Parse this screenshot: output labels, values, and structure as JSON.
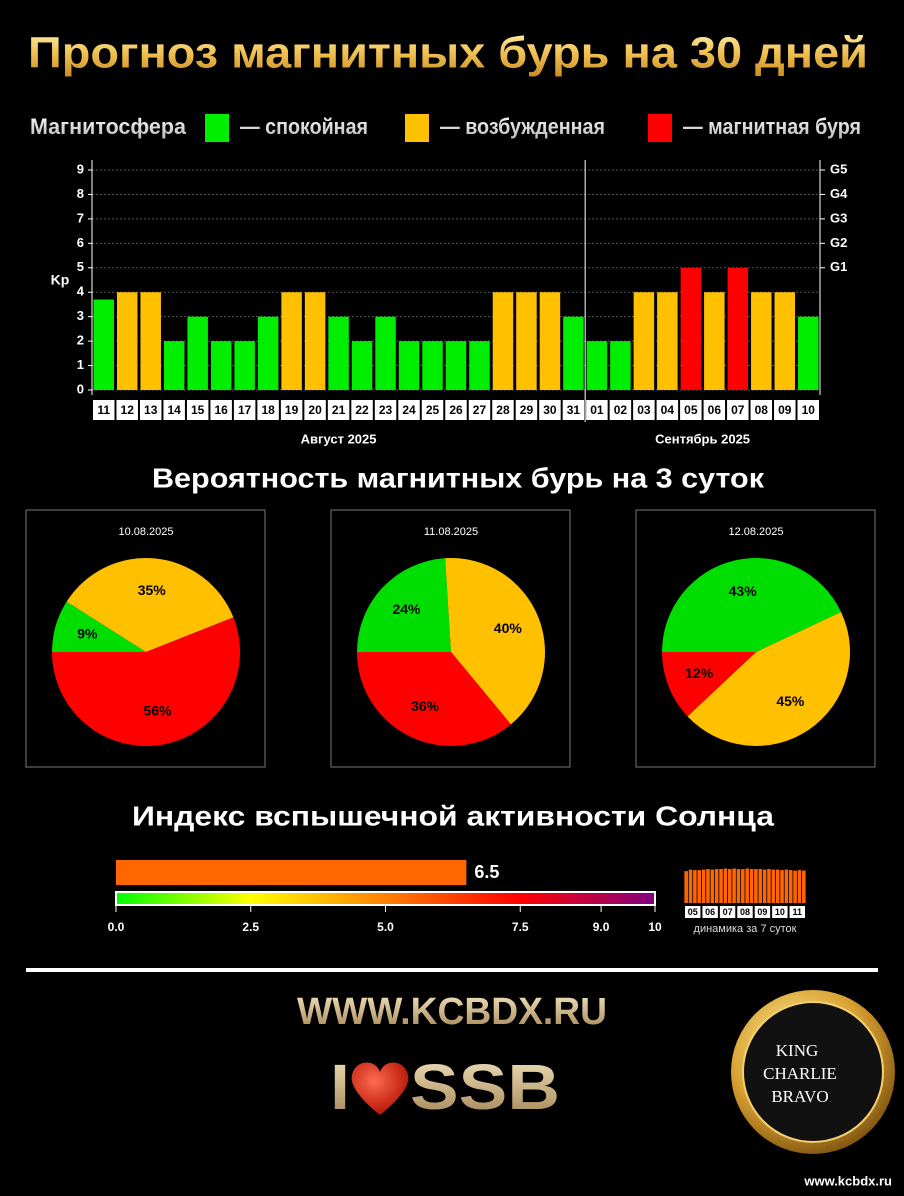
{
  "header": {
    "title": "Прогноз магнитных бурь на 30 дней"
  },
  "legend": {
    "title": "Магнитосфера",
    "items": [
      {
        "label": "— спокойная",
        "color": "#00ee00"
      },
      {
        "label": "— возбужденная",
        "color": "#ffc000"
      },
      {
        "label": "— магнитная буря",
        "color": "#ff0000"
      }
    ]
  },
  "sections": {
    "pies": "Вероятность магнитных бурь на 3 суток",
    "flare": "Индекс вспышечной активности Солнца"
  },
  "chart_data": [
    {
      "type": "bar",
      "y_label": "Kp",
      "ylim": [
        0,
        9
      ],
      "yticks": [
        0,
        1,
        2,
        3,
        4,
        5,
        6,
        7,
        8,
        9
      ],
      "grid": true,
      "y2lim": [
        0,
        9
      ],
      "y2ticks": [
        {
          "value": 5,
          "label": "G1"
        },
        {
          "value": 6,
          "label": "G2"
        },
        {
          "value": 7,
          "label": "G3"
        },
        {
          "value": 8,
          "label": "G4"
        },
        {
          "value": 9,
          "label": "G5"
        }
      ],
      "groups": [
        {
          "label": "Август 2025",
          "categories": [
            "11",
            "12",
            "13",
            "14",
            "15",
            "16",
            "17",
            "18",
            "19",
            "20",
            "21",
            "22",
            "23",
            "24",
            "25",
            "26",
            "27",
            "28",
            "29",
            "30",
            "31"
          ],
          "values": [
            3.7,
            4,
            4,
            2,
            3,
            2,
            2,
            3,
            4,
            4,
            3,
            2,
            3,
            2,
            2,
            2,
            2,
            4,
            4,
            4,
            3
          ],
          "colors": [
            "#00ee00",
            "#ffc000",
            "#ffc000",
            "#00ee00",
            "#00ee00",
            "#00ee00",
            "#00ee00",
            "#00ee00",
            "#ffc000",
            "#ffc000",
            "#00ee00",
            "#00ee00",
            "#00ee00",
            "#00ee00",
            "#00ee00",
            "#00ee00",
            "#00ee00",
            "#ffc000",
            "#ffc000",
            "#ffc000",
            "#00ee00"
          ]
        },
        {
          "label": "Сентябрь 2025",
          "categories": [
            "01",
            "02",
            "03",
            "04",
            "05",
            "06",
            "07",
            "08",
            "09",
            "10"
          ],
          "values": [
            2,
            2,
            4,
            4,
            5,
            4,
            5,
            4,
            4,
            3
          ],
          "colors": [
            "#00ee00",
            "#00ee00",
            "#ffc000",
            "#ffc000",
            "#ff0000",
            "#ffc000",
            "#ff0000",
            "#ffc000",
            "#ffc000",
            "#00ee00"
          ]
        }
      ]
    },
    {
      "type": "pie",
      "title": "10.08.2025",
      "values": [
        9,
        35,
        56
      ],
      "value_labels": [
        "9%",
        "35%",
        "56%"
      ],
      "colors": [
        "#00dd00",
        "#ffc000",
        "#ff0000"
      ]
    },
    {
      "type": "pie",
      "title": "11.08.2025",
      "values": [
        24,
        40,
        36
      ],
      "value_labels": [
        "24%",
        "40%",
        "36%"
      ],
      "colors": [
        "#00dd00",
        "#ffc000",
        "#ff0000"
      ]
    },
    {
      "type": "pie",
      "title": "12.08.2025",
      "values": [
        43,
        45,
        12
      ],
      "value_labels": [
        "43%",
        "45%",
        "12%"
      ],
      "colors": [
        "#00dd00",
        "#ffc000",
        "#ff0000"
      ]
    },
    {
      "type": "hbar",
      "values": [
        6.5
      ],
      "color": "#ff6600",
      "xlim": [
        0,
        10
      ],
      "xticks": [
        {
          "value": 0,
          "label": "0.0"
        },
        2.5,
        {
          "value": 5,
          "label": "5.0"
        },
        7.5,
        {
          "value": 9,
          "label": "9.0"
        },
        10
      ],
      "gradient": [
        "#00ff00",
        "#ffff00",
        "#ff8000",
        "#ff0000",
        "#800080"
      ]
    },
    {
      "type": "minibar",
      "x_label": "динамика за 7 суток",
      "color": "#ff6600",
      "ylim": [
        0,
        7
      ],
      "categories": [
        "05",
        "06",
        "07",
        "08",
        "09",
        "10",
        "11"
      ],
      "values": [
        [
          6.2,
          6.5,
          6.4,
          6.4
        ],
        [
          6.5,
          6.6,
          6.5,
          6.6
        ],
        [
          6.6,
          6.7,
          6.6,
          6.7
        ],
        [
          6.6,
          6.6,
          6.7,
          6.6
        ],
        [
          6.6,
          6.6,
          6.5,
          6.6
        ],
        [
          6.5,
          6.5,
          6.4,
          6.5
        ],
        [
          6.4,
          6.3,
          6.4,
          6.3
        ]
      ]
    }
  ],
  "footer": {
    "site": "WWW.KCBDX.RU",
    "i": "I",
    "ssb": "SSB",
    "logo": [
      "KING",
      "CHARLIE",
      "BRAVO"
    ],
    "url": "www.kcbdx.ru"
  }
}
